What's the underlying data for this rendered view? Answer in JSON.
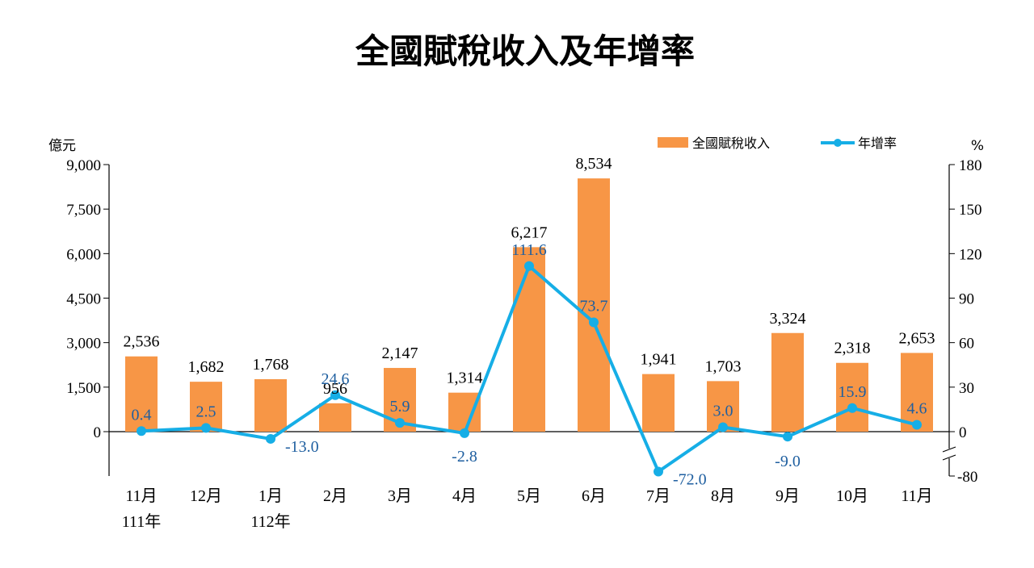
{
  "title": "全國賦稅收入及年增率",
  "chart_data": {
    "type": "bar",
    "title": "全國賦稅收入及年增率",
    "categories": [
      "11月",
      "12月",
      "1月",
      "2月",
      "3月",
      "4月",
      "5月",
      "6月",
      "7月",
      "8月",
      "9月",
      "10月",
      "11月"
    ],
    "category_sublabels": [
      "111年",
      "",
      "112年",
      "",
      "",
      "",
      "",
      "",
      "",
      "",
      "",
      "",
      ""
    ],
    "series": [
      {
        "name": "全國賦稅收入",
        "type": "bar",
        "axis": "left",
        "color": "#f79646",
        "values": [
          2536,
          1682,
          1768,
          956,
          2147,
          1314,
          6217,
          8534,
          1941,
          1703,
          3324,
          2318,
          2653
        ],
        "labels": [
          "2,536",
          "1,682",
          "1,768",
          "956",
          "2,147",
          "1,314",
          "6,217",
          "8,534",
          "1,941",
          "1,703",
          "3,324",
          "2,318",
          "2,653"
        ]
      },
      {
        "name": "年增率",
        "type": "line",
        "axis": "right",
        "color": "#16aee6",
        "label_color": "#1f5fa0",
        "values": [
          0.4,
          2.5,
          -13.0,
          24.6,
          5.9,
          -2.8,
          111.6,
          73.7,
          -72.0,
          3.0,
          -9.0,
          15.9,
          4.6
        ],
        "labels": [
          "0.4",
          "2.5",
          "-13.0",
          "24.6",
          "5.9",
          "-2.8",
          "111.6",
          "73.7",
          "-72.0",
          "3.0",
          "-9.0",
          "15.9",
          "4.6"
        ]
      }
    ],
    "y_left": {
      "unit": "億元",
      "ylim": [
        0,
        9000
      ],
      "ticks": [
        0,
        1500,
        3000,
        4500,
        6000,
        7500,
        9000
      ],
      "tick_labels": [
        "0",
        "1,500",
        "3,000",
        "4,500",
        "6,000",
        "7,500",
        "9,000"
      ]
    },
    "y_right": {
      "unit": "%",
      "ylim": [
        0,
        180
      ],
      "ticks": [
        0,
        30,
        60,
        90,
        120,
        150,
        180
      ],
      "tick_labels": [
        "0",
        "30",
        "60",
        "90",
        "120",
        "150",
        "180"
      ],
      "broken_axis_min": -80,
      "broken_axis_label": "-80"
    },
    "legend": {
      "placement": "top-right",
      "items": [
        {
          "label": "全國賦稅收入",
          "kind": "bar",
          "color": "#f79646"
        },
        {
          "label": "年增率",
          "kind": "line",
          "color": "#16aee6"
        }
      ]
    },
    "grid": false
  }
}
